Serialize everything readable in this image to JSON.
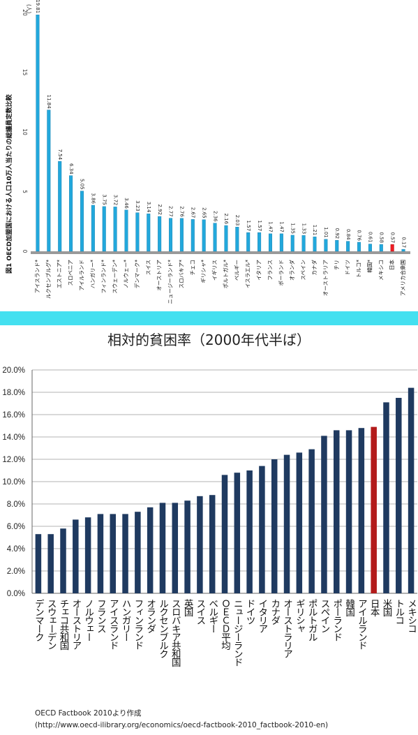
{
  "chart_data": [
    {
      "type": "bar",
      "title": "図1 OECD加盟国における人口10万人当たりの総議員定数比較",
      "unit_label": "(人)",
      "ylim": [
        0,
        20
      ],
      "yticks": [
        "0",
        "5",
        "10",
        "15",
        "20"
      ],
      "categories": [
        "アイスランド*",
        "ルクセンブルグ*",
        "エストニア*",
        "スロベニア",
        "アイルランド",
        "ハンガリー*",
        "フィンランド*",
        "スウェーデン*",
        "ノルウェー*",
        "デンマーク*",
        "スイス",
        "オーストリア",
        "ニュージーランド*",
        "スロバキア*",
        "チェコ",
        "ギリシャ*",
        "イギリス",
        "ポルトガル*",
        "ベルギー",
        "イスラエル*",
        "イタリア",
        "フランス",
        "ポーランド",
        "オランダ",
        "スペイン",
        "カナダ",
        "オーストラリア",
        "チリ",
        "ドイツ",
        "トルコ*",
        "韓国*",
        "メキシコ",
        "日本",
        "アメリカ合衆国"
      ],
      "values": [
        19.81,
        11.84,
        7.54,
        6.34,
        5.05,
        3.86,
        3.75,
        3.72,
        3.46,
        3.23,
        3.14,
        2.92,
        2.77,
        2.76,
        2.67,
        2.65,
        2.36,
        2.16,
        2.03,
        1.57,
        1.57,
        1.47,
        1.47,
        1.35,
        1.33,
        1.21,
        1.01,
        0.92,
        0.84,
        0.76,
        0.61,
        0.58,
        0.57,
        0.17
      ],
      "value_labels": [
        "19.81",
        "11.84",
        "7.54",
        "6.34",
        "5.05",
        "3.86",
        "3.75",
        "3.72",
        "3.46",
        "3.23",
        "3.14",
        "2.92",
        "2.77",
        "2.76",
        "2.67",
        "2.65",
        "2.36",
        "2.16",
        "2.03",
        "1.57",
        "1.57",
        "1.47",
        "1.47",
        "1.35",
        "1.33",
        "1.21",
        "1.01",
        "0.92",
        "0.84",
        "0.76",
        "0.61",
        "0.58",
        "0.57",
        "0.17"
      ],
      "highlight": "日本",
      "bar_color": "#22a8dc",
      "highlight_color": "#ee1c24"
    },
    {
      "type": "bar",
      "title": "相対的貧困率（2000年代半ば）",
      "ylim": [
        0,
        20
      ],
      "yticks": [
        "0.0%",
        "2.0%",
        "4.0%",
        "6.0%",
        "8.0%",
        "10.0%",
        "12.0%",
        "14.0%",
        "16.0%",
        "18.0%",
        "20.0%"
      ],
      "categories": [
        "デンマーク",
        "スウェーデン",
        "チェコ共和国",
        "オーストリア",
        "ノルウェー",
        "フランス",
        "アイスランド",
        "ハンガリー",
        "フィンランド",
        "オランダ",
        "ルクセンブルク",
        "スロバキア共和国",
        "英国",
        "スイス",
        "ベルギー",
        "ＯＥＣＤ平均",
        "ニュージーランド",
        "ドイツ",
        "イタリア",
        "カナダ",
        "オーストラリア",
        "ギリシャ",
        "ポルトガル",
        "スペイン",
        "ポーランド",
        "韓国",
        "アイルランド",
        "日本",
        "米国",
        "トルコ",
        "メキシコ"
      ],
      "values": [
        5.3,
        5.3,
        5.8,
        6.6,
        6.8,
        7.1,
        7.1,
        7.1,
        7.3,
        7.7,
        8.1,
        8.1,
        8.3,
        8.7,
        8.8,
        10.6,
        10.8,
        11.0,
        11.4,
        12.0,
        12.4,
        12.6,
        12.9,
        14.1,
        14.6,
        14.6,
        14.8,
        14.9,
        17.1,
        17.5,
        18.4
      ],
      "highlight": "日本",
      "bar_color": "#1f3a60",
      "highlight_color": "#b31b1b"
    }
  ],
  "source": {
    "line1": "OECD Factbook 2010より作成",
    "line2": "(http://www.oecd-ilibrary.org/economics/oecd-factbook-2010_factbook-2010-en)"
  }
}
